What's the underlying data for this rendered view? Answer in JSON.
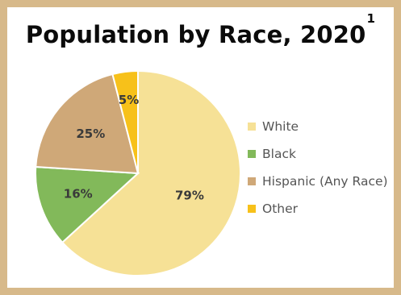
{
  "chart_data": {
    "type": "pie",
    "title": "Population by Race, 2020",
    "title_superscript": "1",
    "categories": [
      "White",
      "Black",
      "Hispanic (Any Race)",
      "Other"
    ],
    "values": [
      79,
      16,
      25,
      5
    ],
    "data_labels": [
      "79%",
      "16%",
      "25%",
      "5%"
    ],
    "colors": [
      "#f6e196",
      "#82b95a",
      "#cfa878",
      "#f7c11a"
    ],
    "legend_position": "right",
    "start_angle_deg": 0,
    "direction": "clockwise"
  }
}
